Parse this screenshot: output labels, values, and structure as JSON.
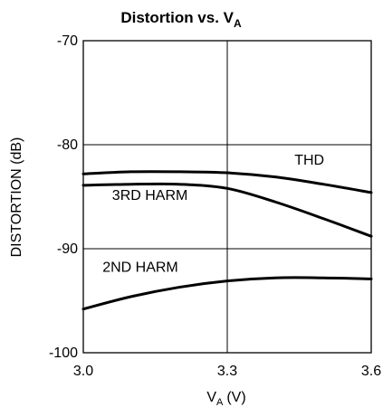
{
  "chart_data": {
    "type": "line",
    "title": "Distortion vs. V",
    "title_subscript": "A",
    "xlabel": "V",
    "xlabel_subscript": "A",
    "xlabel_unit": "(V)",
    "ylabel": "DISTORTION (dB)",
    "xlim": [
      3.0,
      3.6
    ],
    "ylim": [
      -100,
      -70
    ],
    "x_ticks": [
      3.0,
      3.3,
      3.6
    ],
    "x_tick_labels": [
      "3.0",
      "3.3",
      "3.6"
    ],
    "y_ticks": [
      -100,
      -90,
      -80,
      -70
    ],
    "y_tick_labels": [
      "-100",
      "-90",
      "-80",
      "-70"
    ],
    "grid": true,
    "legend": "none",
    "x": [
      3.0,
      3.1,
      3.2,
      3.3,
      3.4,
      3.5,
      3.6
    ],
    "series": [
      {
        "name": "THD",
        "values": [
          -82.8,
          -82.6,
          -82.6,
          -82.7,
          -83.1,
          -83.8,
          -84.6
        ]
      },
      {
        "name": "3RD HARM",
        "values": [
          -83.9,
          -83.8,
          -83.8,
          -84.2,
          -85.5,
          -87.1,
          -88.8
        ]
      },
      {
        "name": "2ND HARM",
        "values": [
          -95.8,
          -94.6,
          -93.7,
          -93.1,
          -92.8,
          -92.8,
          -92.9
        ]
      }
    ],
    "series_label_anchor": [
      {
        "x": 3.44,
        "y": -81.9
      },
      {
        "x": 3.06,
        "y": -85.3
      },
      {
        "x": 3.04,
        "y": -92.2
      }
    ]
  }
}
